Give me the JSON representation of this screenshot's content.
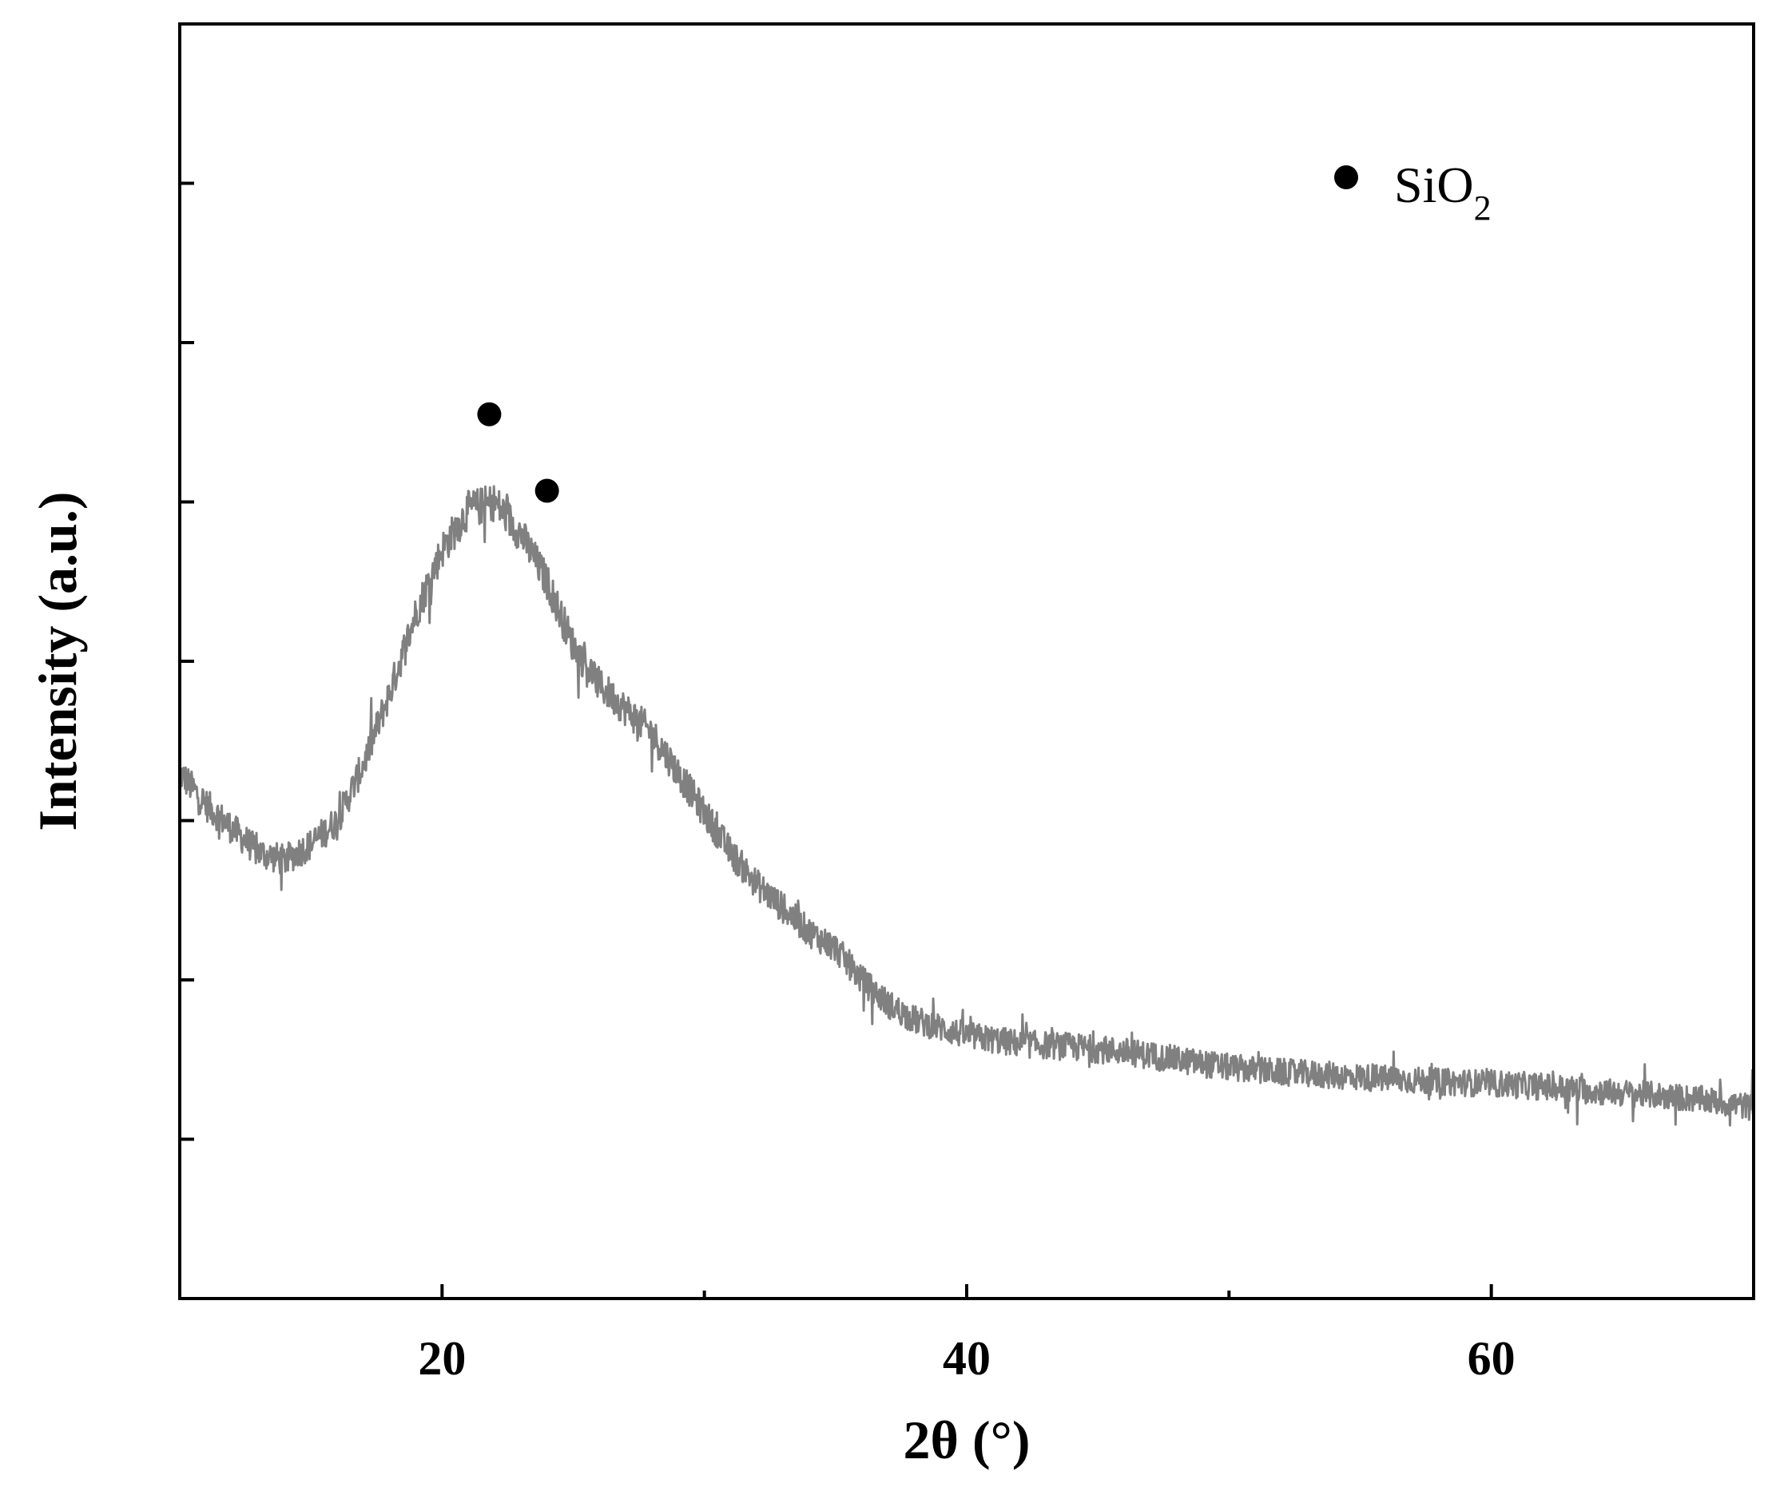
{
  "chart_data": {
    "type": "line",
    "xlabel": "2θ (°)",
    "ylabel": "Intensity (a.u.)",
    "xlim": [
      10,
      70
    ],
    "ylim": [
      0,
      8
    ],
    "x_major_ticks": [
      20,
      40,
      60
    ],
    "x_major_tick_labels": [
      "20",
      "40",
      "60"
    ],
    "x_minor_ticks": [
      30,
      50
    ],
    "y_ticks": [
      1,
      2,
      3,
      4,
      5,
      6,
      7
    ],
    "y_tick_labels_shown": false,
    "grid": false,
    "line_color": "#808080",
    "marker_color": "#000000",
    "legend": {
      "position": "top-right",
      "marker": "filled-circle",
      "label_main": "SiO",
      "label_subscript": "2"
    },
    "series": [
      {
        "line_color": "#808080",
        "x": [
          10,
          11,
          12,
          13,
          14,
          15,
          16,
          17,
          18,
          19,
          20,
          21,
          22,
          23,
          24,
          25,
          26,
          27,
          28,
          29,
          30,
          31,
          32,
          33,
          34,
          35,
          36,
          37,
          38,
          39,
          40,
          42,
          44,
          46,
          48,
          50,
          52,
          54,
          56,
          58,
          60,
          62,
          64,
          66,
          68,
          70
        ],
        "y": [
          3.3,
          3.1,
          2.95,
          2.8,
          2.75,
          2.85,
          3.0,
          3.35,
          3.8,
          4.3,
          4.7,
          4.95,
          5.0,
          4.8,
          4.5,
          4.1,
          3.85,
          3.7,
          3.55,
          3.3,
          3.05,
          2.8,
          2.6,
          2.45,
          2.3,
          2.2,
          2.0,
          1.85,
          1.75,
          1.7,
          1.65,
          1.6,
          1.58,
          1.55,
          1.5,
          1.45,
          1.42,
          1.4,
          1.38,
          1.36,
          1.35,
          1.33,
          1.3,
          1.28,
          1.25,
          1.2
        ],
        "noise_amplitude": 0.12
      }
    ],
    "peak_markers": [
      {
        "x": 21.8,
        "y": 5.55
      },
      {
        "x": 24.0,
        "y": 5.07
      }
    ]
  }
}
